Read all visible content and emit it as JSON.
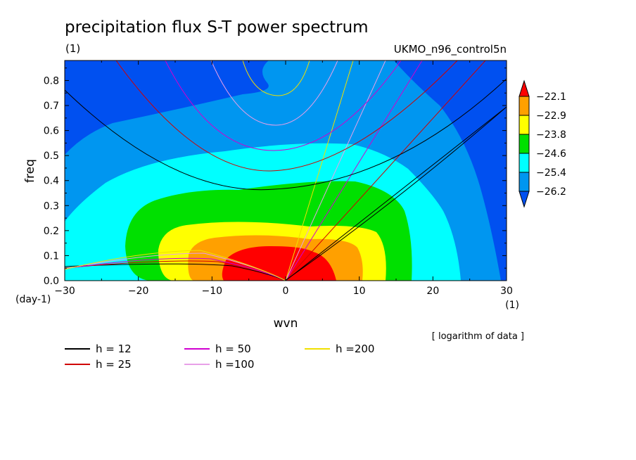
{
  "header": {
    "title": "precipitation flux S-T power spectrum",
    "unit_label": "(1)",
    "dataset": "UKMO_n96_control5n"
  },
  "chart_data": {
    "type": "heatmap",
    "title": "precipitation flux S-T power spectrum",
    "xlabel": "wvn",
    "ylabel": "freq",
    "x_unit": "(1)",
    "y_unit": "(day-1)",
    "xlim": [
      -30,
      30
    ],
    "ylim": [
      0,
      0.88
    ],
    "x_ticks": [
      -30,
      -20,
      -10,
      0,
      10,
      20,
      30
    ],
    "y_ticks": [
      0.0,
      0.1,
      0.2,
      0.3,
      0.4,
      0.5,
      0.6,
      0.7,
      0.8
    ],
    "grid": false,
    "note": "[ logarithm of data ]",
    "colorbar": {
      "levels": [
        -26.2,
        -25.4,
        -24.6,
        -23.8,
        -22.9,
        -22.1
      ],
      "colors": [
        "#0050f0",
        "#0096f0",
        "#00ffff",
        "#00e000",
        "#ffff00",
        "#ffa000",
        "#ff0000"
      ]
    },
    "dispersion_curves": [
      {
        "name": "h = 12",
        "h": 12,
        "color": "#000000"
      },
      {
        "name": "h = 25",
        "h": 25,
        "color": "#d00000"
      },
      {
        "name": "h = 50",
        "h": 50,
        "color": "#d000d0"
      },
      {
        "name": "h =100",
        "h": 100,
        "color": "#e8a0e8"
      },
      {
        "name": "h =200",
        "h": 200,
        "color": "#f0e000"
      }
    ]
  }
}
